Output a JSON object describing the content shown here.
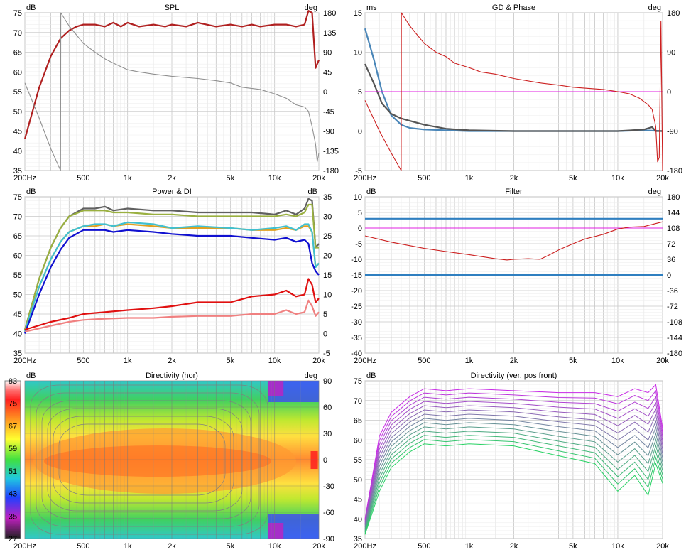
{
  "panels": [
    {
      "id": "spl",
      "title": "SPL",
      "unit_left": "dB",
      "unit_right": "deg",
      "y_ticks": [
        "75",
        "70",
        "65",
        "60",
        "55",
        "50",
        "45",
        "40",
        "35"
      ],
      "y2_ticks": [
        "180",
        "135",
        "90",
        "45",
        "0",
        "-45",
        "-90",
        "-135",
        "-180"
      ],
      "x_ticks": [
        "200Hz",
        "500",
        "1k",
        "2k",
        "5k",
        "10k",
        "20k"
      ]
    },
    {
      "id": "gd_phase",
      "title": "GD & Phase",
      "unit_left": "ms",
      "unit_right": "deg",
      "y_ticks": [
        "15",
        "10",
        "5",
        "0",
        "-5"
      ],
      "y2_ticks": [
        "180",
        "90",
        "0",
        "-90",
        "-180"
      ],
      "x_ticks": [
        "200Hz",
        "500",
        "1k",
        "2k",
        "5k",
        "10k",
        "20k"
      ]
    },
    {
      "id": "power_di",
      "title": "Power & DI",
      "unit_left": "dB",
      "unit_right": "dB",
      "y_ticks": [
        "75",
        "70",
        "65",
        "60",
        "55",
        "50",
        "45",
        "40",
        "35"
      ],
      "y2_ticks": [
        "35",
        "30",
        "25",
        "20",
        "15",
        "10",
        "5",
        "0",
        "-5"
      ],
      "x_ticks": [
        "200Hz",
        "500",
        "1k",
        "2k",
        "5k",
        "10k",
        "20k"
      ]
    },
    {
      "id": "filter",
      "title": "Filter",
      "unit_left": "dB",
      "unit_right": "deg",
      "y_ticks": [
        "10",
        "5",
        "0",
        "-5",
        "-10",
        "-15",
        "-20",
        "-25",
        "-30",
        "-35",
        "-40"
      ],
      "y2_ticks": [
        "180",
        "144",
        "108",
        "72",
        "36",
        "0",
        "-36",
        "-72",
        "-108",
        "-144",
        "-180"
      ],
      "x_ticks": [
        "200Hz",
        "500",
        "1k",
        "2k",
        "5k",
        "10k",
        "20k"
      ]
    },
    {
      "id": "dir_hor",
      "title": "Directivity (hor)",
      "unit_left": "dB",
      "unit_right": "deg",
      "colorbar_ticks": [
        "83",
        "75",
        "67",
        "59",
        "51",
        "43",
        "35",
        "27"
      ],
      "y2_ticks": [
        "90",
        "60",
        "30",
        "0",
        "-30",
        "-60",
        "-90"
      ],
      "x_ticks": [
        "200Hz",
        "500",
        "1k",
        "2k",
        "5k",
        "10k",
        "20k"
      ]
    },
    {
      "id": "dir_ver",
      "title": "Directivity (ver, pos front)",
      "unit_left": "dB",
      "y_ticks": [
        "75",
        "70",
        "65",
        "60",
        "55",
        "50",
        "45",
        "40",
        "35"
      ],
      "x_ticks": [
        "200Hz",
        "500",
        "1k",
        "2k",
        "5k",
        "10k",
        "20k"
      ]
    }
  ],
  "colors": {
    "spl_curve": "#b02020",
    "phase_grey": "#909090",
    "gd_blue": "#4a86b8",
    "gd_dark": "#555555",
    "phase_red": "#cc2020",
    "ref_magenta": "#e020e0",
    "filter_blue": "#2f7fc0",
    "power_grey": "#606060",
    "power_olive": "#9ab040",
    "power_orange": "#e0a020",
    "power_cyan": "#40c0d0",
    "power_blue": "#1010d0",
    "di_red": "#e01010",
    "di_pink": "#f08080"
  },
  "chart_data": [
    {
      "panel": "spl",
      "type": "line",
      "x_scale": "log",
      "xlim": [
        200,
        20000
      ],
      "ylim": [
        35,
        75
      ],
      "y2lim": [
        -180,
        180
      ],
      "series": [
        {
          "axis": "left",
          "color_key": "spl_curve",
          "x": [
            200,
            250,
            300,
            350,
            400,
            450,
            500,
            600,
            700,
            800,
            900,
            1000,
            1200,
            1500,
            1800,
            2000,
            2500,
            3000,
            4000,
            5000,
            6000,
            7000,
            8000,
            10000,
            12000,
            14000,
            16000,
            17000,
            18000,
            19000,
            20000
          ],
          "y": [
            43,
            56,
            64,
            68.5,
            70.5,
            71.5,
            72,
            72,
            71.5,
            72.5,
            71.5,
            72.5,
            71.5,
            72,
            71.5,
            72,
            71.5,
            72.5,
            71.5,
            72,
            71.5,
            72,
            71.5,
            72,
            72,
            71.5,
            72,
            75.5,
            75,
            61,
            63
          ]
        },
        {
          "axis": "right",
          "color_key": "phase_grey",
          "x": [
            200,
            250,
            300,
            350,
            351,
            400,
            500,
            600,
            700,
            800,
            1000,
            1200,
            1500,
            2000,
            3000,
            4000,
            5000,
            6000,
            8000,
            10000,
            12000,
            14000,
            16000,
            17000,
            18000,
            19000,
            19500,
            20000
          ],
          "y": [
            20,
            -60,
            -130,
            -180,
            180,
            150,
            110,
            90,
            75,
            65,
            50,
            45,
            40,
            35,
            30,
            25,
            20,
            10,
            5,
            -5,
            -15,
            -30,
            -35,
            -45,
            -80,
            -120,
            -160,
            -140
          ]
        }
      ]
    },
    {
      "panel": "gd_phase",
      "type": "line",
      "x_scale": "log",
      "xlim": [
        200,
        20000
      ],
      "ylim": [
        -5,
        15
      ],
      "y2lim": [
        -180,
        180
      ],
      "series": [
        {
          "axis": "left",
          "color_key": "gd_blue",
          "x": [
            200,
            230,
            260,
            300,
            350,
            400,
            500,
            700,
            1000,
            2000,
            5000,
            10000,
            15000,
            20000
          ],
          "y": [
            13,
            9,
            5,
            2,
            0.8,
            0.4,
            0.2,
            0.1,
            0,
            0,
            0,
            0,
            0.1,
            0
          ]
        },
        {
          "axis": "left",
          "color_key": "gd_dark",
          "x": [
            200,
            230,
            260,
            300,
            350,
            400,
            500,
            700,
            1000,
            2000,
            5000,
            10000,
            15000,
            17000,
            18000,
            20000
          ],
          "y": [
            8.5,
            6,
            3.5,
            2.2,
            1.6,
            1.3,
            0.8,
            0.3,
            0.1,
            0,
            0,
            0,
            0.2,
            0.5,
            0,
            0
          ]
        },
        {
          "axis": "left",
          "color_key": "ref_magenta",
          "x": [
            200,
            20000
          ],
          "y": [
            5,
            5
          ]
        },
        {
          "axis": "right",
          "color_key": "phase_red",
          "x": [
            200,
            250,
            300,
            350,
            351,
            400,
            500,
            600,
            700,
            800,
            1000,
            1200,
            1500,
            2000,
            3000,
            4000,
            5000,
            6000,
            8000,
            10000,
            12000,
            14000,
            16000,
            17000,
            18000,
            18500,
            19000,
            19500,
            20000
          ],
          "y": [
            -20,
            -90,
            -140,
            -180,
            180,
            150,
            110,
            90,
            80,
            65,
            55,
            45,
            40,
            30,
            20,
            15,
            10,
            8,
            5,
            0,
            -5,
            -15,
            -30,
            -40,
            -80,
            -160,
            -150,
            160,
            -180
          ]
        }
      ]
    },
    {
      "panel": "power_di",
      "type": "line",
      "x_scale": "log",
      "xlim": [
        200,
        20000
      ],
      "ylim": [
        35,
        75
      ],
      "y2lim": [
        -5,
        35
      ],
      "series": [
        {
          "axis": "left",
          "color_key": "power_grey",
          "x": [
            200,
            250,
            300,
            350,
            400,
            500,
            600,
            700,
            800,
            1000,
            1500,
            2000,
            3000,
            5000,
            7000,
            10000,
            12000,
            14000,
            16000,
            17000,
            18000,
            19000,
            20000
          ],
          "y": [
            41,
            54,
            62,
            67,
            70,
            72,
            72,
            72.5,
            71.5,
            72,
            71.5,
            71.5,
            71,
            71,
            71,
            70.5,
            71.5,
            70.5,
            72,
            74.5,
            74,
            62,
            63
          ]
        },
        {
          "axis": "left",
          "color_key": "power_olive",
          "x": [
            200,
            250,
            300,
            350,
            400,
            500,
            600,
            700,
            800,
            1000,
            1500,
            2000,
            3000,
            5000,
            7000,
            10000,
            12000,
            14000,
            16000,
            17000,
            18000,
            19000,
            20000
          ],
          "y": [
            41,
            54,
            62,
            67,
            70,
            71.5,
            71.5,
            71.5,
            71,
            71,
            70.5,
            70.5,
            70,
            70,
            70,
            70,
            70.5,
            70,
            71,
            73,
            73,
            62,
            62
          ]
        },
        {
          "axis": "left",
          "color_key": "power_orange",
          "x": [
            200,
            250,
            300,
            350,
            400,
            500,
            600,
            700,
            800,
            1000,
            1500,
            2000,
            3000,
            5000,
            7000,
            10000,
            12000,
            14000,
            16000,
            17000,
            18000,
            19000,
            20000
          ],
          "y": [
            40.5,
            52,
            59,
            63.5,
            66,
            67.5,
            67.5,
            68,
            67.5,
            68,
            67.5,
            67,
            67,
            67,
            66.5,
            66.5,
            67,
            66.5,
            67.5,
            67.5,
            66,
            57,
            58
          ]
        },
        {
          "axis": "left",
          "color_key": "power_cyan",
          "x": [
            200,
            250,
            300,
            350,
            400,
            500,
            600,
            700,
            800,
            1000,
            1500,
            2000,
            3000,
            5000,
            7000,
            10000,
            12000,
            14000,
            16000,
            17000,
            18000,
            19000,
            20000
          ],
          "y": [
            40.5,
            52,
            59,
            63.5,
            66,
            67.5,
            68,
            68,
            67.5,
            68.5,
            68,
            67,
            67.5,
            67,
            66.5,
            67,
            67.5,
            66.5,
            68,
            68,
            66,
            57,
            58
          ]
        },
        {
          "axis": "left",
          "color_key": "power_blue",
          "x": [
            200,
            250,
            300,
            350,
            400,
            500,
            600,
            700,
            800,
            1000,
            1500,
            2000,
            3000,
            5000,
            7000,
            10000,
            12000,
            14000,
            16000,
            17000,
            18000,
            19000,
            20000
          ],
          "y": [
            40,
            50,
            57,
            61.5,
            64.5,
            66.5,
            66.5,
            66.5,
            66,
            66.5,
            66,
            65.5,
            65,
            65,
            64.5,
            64,
            64.5,
            63.5,
            64,
            63,
            58,
            56,
            55
          ]
        },
        {
          "axis": "right",
          "color_key": "di_red",
          "x": [
            200,
            300,
            400,
            500,
            700,
            1000,
            1500,
            2000,
            3000,
            5000,
            7000,
            10000,
            12000,
            14000,
            16000,
            17000,
            18000,
            19000,
            20000
          ],
          "y": [
            1,
            3,
            4,
            5,
            5.5,
            6,
            6.5,
            7,
            8,
            8,
            9.5,
            10,
            11,
            9.5,
            10,
            14,
            12.5,
            8,
            9
          ]
        },
        {
          "axis": "right",
          "color_key": "di_pink",
          "x": [
            200,
            300,
            400,
            500,
            700,
            1000,
            1500,
            2000,
            3000,
            5000,
            7000,
            10000,
            12000,
            14000,
            16000,
            17000,
            18000,
            19000,
            20000
          ],
          "y": [
            0.5,
            2,
            3,
            3.5,
            3.8,
            4,
            4,
            4.3,
            4.5,
            4.5,
            5,
            5,
            6,
            5,
            5.5,
            8.5,
            7,
            4.5,
            5.5
          ]
        }
      ]
    },
    {
      "panel": "filter",
      "type": "line",
      "x_scale": "log",
      "xlim": [
        200,
        20000
      ],
      "ylim": [
        -40,
        10
      ],
      "y2lim": [
        -180,
        180
      ],
      "series": [
        {
          "axis": "left",
          "color_key": "filter_blue",
          "x": [
            200,
            20000
          ],
          "y": [
            3,
            3
          ]
        },
        {
          "axis": "left",
          "color_key": "filter_blue",
          "x": [
            200,
            20000
          ],
          "y": [
            -15,
            -15
          ]
        },
        {
          "axis": "left",
          "color_key": "ref_magenta",
          "x": [
            200,
            20000
          ],
          "y": [
            0,
            0
          ]
        },
        {
          "axis": "left",
          "color_key": "phase_red",
          "x": [
            200,
            300,
            500,
            700,
            1000,
            1500,
            1800,
            2000,
            2500,
            3000,
            3500,
            4000,
            5000,
            6000,
            8000,
            10000,
            12000,
            15000,
            20000
          ],
          "y": [
            -2.5,
            -4.5,
            -6.5,
            -7.5,
            -8.5,
            -9.8,
            -10.2,
            -10,
            -9.8,
            -10,
            -8.5,
            -7,
            -5,
            -3.5,
            -2,
            -0.3,
            0.3,
            0.5,
            2
          ]
        }
      ]
    },
    {
      "panel": "dir_hor",
      "type": "heatmap",
      "x_scale": "log",
      "xlim": [
        200,
        20000
      ],
      "y2lim": [
        -90,
        90
      ],
      "color_range": [
        27,
        83
      ]
    },
    {
      "panel": "dir_ver",
      "type": "line",
      "x_scale": "log",
      "xlim": [
        200,
        20000
      ],
      "ylim": [
        35,
        75
      ],
      "note": "family of vertical off-axis curves"
    }
  ]
}
